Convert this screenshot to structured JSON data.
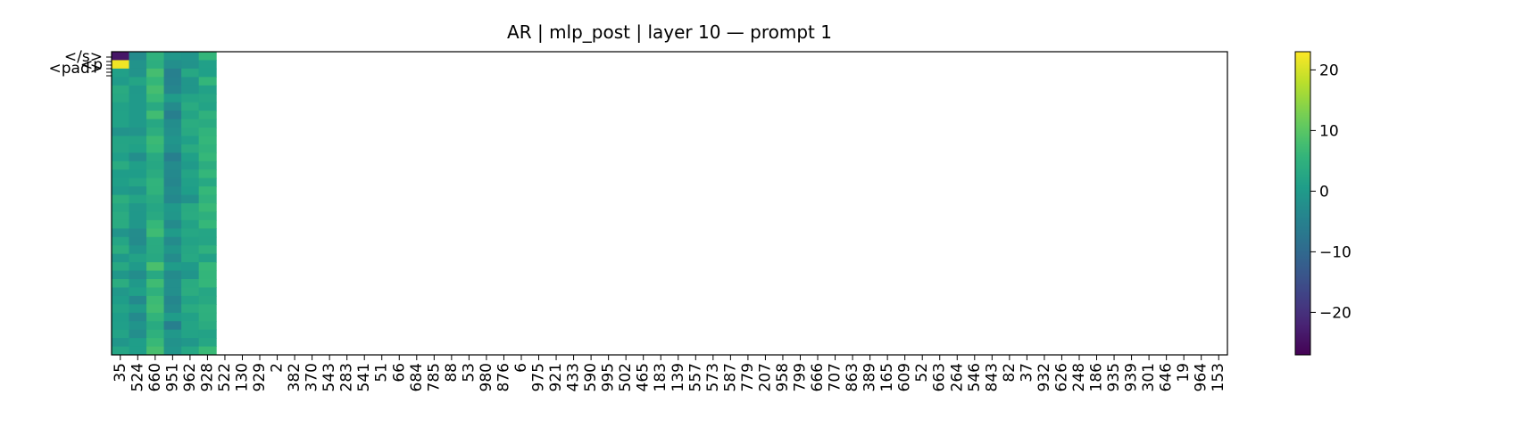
{
  "chart_data": {
    "type": "heatmap",
    "title": "AR | mlp_post | layer 10 — prompt 1",
    "colormap": "viridis",
    "x_tick_labels": [
      "35",
      "524",
      "660",
      "951",
      "962",
      "928",
      "522",
      "130",
      "929",
      "2",
      "382",
      "370",
      "543",
      "283",
      "541",
      "51",
      "66",
      "684",
      "785",
      "88",
      "53",
      "980",
      "876",
      "6",
      "975",
      "921",
      "433",
      "590",
      "995",
      "502",
      "465",
      "183",
      "139",
      "557",
      "573",
      "587",
      "779",
      "207",
      "958",
      "799",
      "666",
      "707",
      "863",
      "389",
      "165",
      "609",
      "52",
      "663",
      "264",
      "546",
      "843",
      "82",
      "37",
      "932",
      "626",
      "248",
      "186",
      "935",
      "939",
      "301",
      "646",
      "19",
      "964",
      "153"
    ],
    "y_tick_labels": [
      "</s>",
      "",
      "<p",
      "<pad>",
      "",
      ""
    ],
    "filled_columns": 6,
    "colorbar": {
      "vmin": -27,
      "vmax": 23,
      "ticks": [
        20,
        10,
        0,
        -10,
        -20
      ],
      "tick_labels": [
        "20",
        "10",
        "0",
        "−10",
        "−20"
      ]
    },
    "column_means": [
      1.5,
      -0.5,
      5.5,
      -2.5,
      1.0,
      4.0
    ],
    "row_count": 36,
    "notable_cells": [
      {
        "row": 0,
        "col": 0,
        "value": -24
      },
      {
        "row": 1,
        "col": 0,
        "value": 22
      }
    ]
  }
}
